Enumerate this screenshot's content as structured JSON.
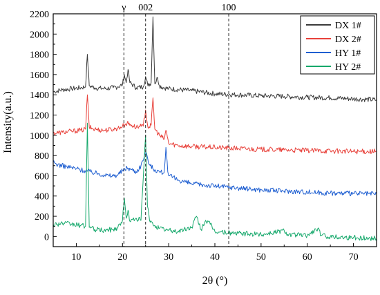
{
  "chart_data": {
    "type": "line",
    "title": "",
    "xlabel": "2θ (°)",
    "ylabel": "Intensity(a.u.)",
    "xlim": [
      5,
      75
    ],
    "ylim": [
      -100,
      2200
    ],
    "x_ticks": [
      10,
      20,
      30,
      40,
      50,
      60,
      70
    ],
    "y_ticks": [
      0,
      200,
      400,
      600,
      800,
      1000,
      1200,
      1400,
      1600,
      1800,
      2000,
      2200
    ],
    "grid": false,
    "legend_position": "top-right",
    "reference_lines": [
      {
        "label": "γ",
        "x": 20.3
      },
      {
        "label": "002",
        "x": 25.0
      },
      {
        "label": "100",
        "x": 43.0
      }
    ],
    "series": [
      {
        "name": "DX 1#",
        "color": "#3a3a3a",
        "points": [
          [
            5,
            1430
          ],
          [
            7,
            1450
          ],
          [
            9,
            1460
          ],
          [
            11,
            1470
          ],
          [
            12,
            1480
          ],
          [
            12.4,
            1800
          ],
          [
            12.8,
            1490
          ],
          [
            14,
            1470
          ],
          [
            16,
            1460
          ],
          [
            18,
            1470
          ],
          [
            19,
            1480
          ],
          [
            20,
            1500
          ],
          [
            20.4,
            1600
          ],
          [
            20.8,
            1520
          ],
          [
            21.2,
            1650
          ],
          [
            21.6,
            1520
          ],
          [
            23,
            1470
          ],
          [
            24.5,
            1480
          ],
          [
            25,
            1580
          ],
          [
            25.5,
            1490
          ],
          [
            26.2,
            1520
          ],
          [
            26.6,
            2170
          ],
          [
            27,
            1510
          ],
          [
            27.6,
            1570
          ],
          [
            28,
            1490
          ],
          [
            29,
            1470
          ],
          [
            30,
            1460
          ],
          [
            35,
            1440
          ],
          [
            40,
            1410
          ],
          [
            45,
            1400
          ],
          [
            50,
            1390
          ],
          [
            55,
            1385
          ],
          [
            60,
            1375
          ],
          [
            65,
            1370
          ],
          [
            70,
            1360
          ],
          [
            75,
            1350
          ]
        ]
      },
      {
        "name": "DX 2#",
        "color": "#e8413a",
        "points": [
          [
            5,
            1020
          ],
          [
            7,
            1030
          ],
          [
            9,
            1040
          ],
          [
            11,
            1050
          ],
          [
            12,
            1060
          ],
          [
            12.4,
            1400
          ],
          [
            12.8,
            1080
          ],
          [
            14,
            1060
          ],
          [
            16,
            1050
          ],
          [
            18,
            1060
          ],
          [
            19,
            1070
          ],
          [
            20,
            1090
          ],
          [
            21,
            1120
          ],
          [
            22,
            1100
          ],
          [
            23,
            1080
          ],
          [
            24.5,
            1090
          ],
          [
            25,
            1250
          ],
          [
            25.5,
            1080
          ],
          [
            26.2,
            1100
          ],
          [
            26.6,
            1370
          ],
          [
            27,
            1060
          ],
          [
            28,
            1000
          ],
          [
            29,
            960
          ],
          [
            29.4,
            1050
          ],
          [
            30,
            920
          ],
          [
            32,
            900
          ],
          [
            35,
            890
          ],
          [
            40,
            880
          ],
          [
            45,
            870
          ],
          [
            50,
            860
          ],
          [
            55,
            855
          ],
          [
            60,
            850
          ],
          [
            65,
            845
          ],
          [
            70,
            840
          ],
          [
            75,
            840
          ]
        ]
      },
      {
        "name": "HY 1#",
        "color": "#1f5fd1",
        "points": [
          [
            5,
            730
          ],
          [
            6,
            710
          ],
          [
            8,
            690
          ],
          [
            10,
            670
          ],
          [
            12,
            650
          ],
          [
            13,
            640
          ],
          [
            15,
            620
          ],
          [
            16,
            610
          ],
          [
            17,
            600
          ],
          [
            18,
            600
          ],
          [
            19,
            610
          ],
          [
            20,
            650
          ],
          [
            21,
            680
          ],
          [
            22,
            660
          ],
          [
            23,
            640
          ],
          [
            24,
            700
          ],
          [
            25,
            830
          ],
          [
            25.5,
            760
          ],
          [
            26,
            700
          ],
          [
            27,
            660
          ],
          [
            28,
            640
          ],
          [
            29,
            630
          ],
          [
            29.4,
            880
          ],
          [
            29.8,
            640
          ],
          [
            30,
            600
          ],
          [
            32,
            560
          ],
          [
            35,
            520
          ],
          [
            40,
            500
          ],
          [
            45,
            480
          ],
          [
            50,
            460
          ],
          [
            55,
            450
          ],
          [
            60,
            440
          ],
          [
            65,
            430
          ],
          [
            70,
            425
          ],
          [
            75,
            420
          ]
        ]
      },
      {
        "name": "HY 2#",
        "color": "#15a86b",
        "points": [
          [
            5,
            120
          ],
          [
            7,
            130
          ],
          [
            9,
            120
          ],
          [
            11,
            110
          ],
          [
            12,
            100
          ],
          [
            12.4,
            1120
          ],
          [
            12.8,
            90
          ],
          [
            14,
            70
          ],
          [
            16,
            60
          ],
          [
            18,
            70
          ],
          [
            19,
            90
          ],
          [
            20,
            160
          ],
          [
            20.4,
            380
          ],
          [
            20.8,
            180
          ],
          [
            21.2,
            260
          ],
          [
            21.6,
            150
          ],
          [
            23,
            180
          ],
          [
            24,
            160
          ],
          [
            25,
            1000
          ],
          [
            25.4,
            300
          ],
          [
            26,
            140
          ],
          [
            27,
            110
          ],
          [
            28,
            80
          ],
          [
            30,
            60
          ],
          [
            32,
            50
          ],
          [
            35,
            90
          ],
          [
            36,
            200
          ],
          [
            37,
            70
          ],
          [
            38,
            160
          ],
          [
            39,
            120
          ],
          [
            40,
            50
          ],
          [
            45,
            30
          ],
          [
            50,
            20
          ],
          [
            55,
            60
          ],
          [
            56,
            20
          ],
          [
            60,
            10
          ],
          [
            62.3,
            80
          ],
          [
            63,
            10
          ],
          [
            65,
            0
          ],
          [
            70,
            -10
          ],
          [
            75,
            -20
          ]
        ]
      }
    ]
  }
}
